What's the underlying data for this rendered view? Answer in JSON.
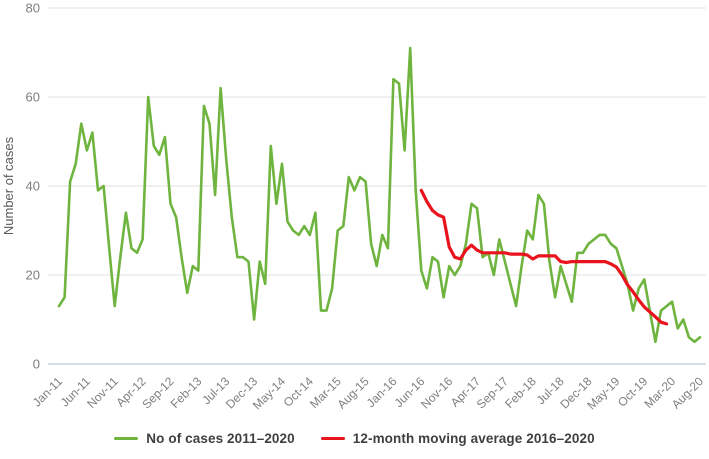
{
  "chart_data": {
    "type": "line",
    "title": "",
    "xlabel": "",
    "ylabel": "Number of cases",
    "ylim": [
      0,
      80
    ],
    "yticks": [
      0,
      20,
      40,
      60,
      80
    ],
    "grid": "horizontal",
    "legend_position": "bottom",
    "n_points": 116,
    "x_tick_labels": [
      "Jan-11",
      "Jun-11",
      "Nov-11",
      "Apr-12",
      "Sep-12",
      "Feb-13",
      "Jul-13",
      "Dec-13",
      "May-14",
      "Oct-14",
      "Mar-15",
      "Aug-15",
      "Jan-16",
      "Jun-16",
      "Nov-16",
      "Apr-17",
      "Sep-17",
      "Feb-18",
      "Jul-18",
      "Dec-18",
      "May-19",
      "Oct-19",
      "Mar-20",
      "Aug-20"
    ],
    "x_tick_every_months": 5,
    "x_range_months": "Jan-2011 to Aug-2020",
    "series": [
      {
        "name": "No of cases 2011–2020",
        "color": "#6FB43F",
        "stroke_width": 2.6,
        "start_index": 0,
        "values": [
          13,
          15,
          41,
          45,
          54,
          48,
          52,
          39,
          40,
          26,
          13,
          24,
          34,
          26,
          25,
          28,
          60,
          49,
          47,
          51,
          36,
          33,
          24,
          16,
          22,
          21,
          58,
          54,
          38,
          62,
          46,
          33,
          24,
          24,
          23,
          10,
          23,
          18,
          49,
          36,
          45,
          32,
          30,
          29,
          31,
          29,
          34,
          12,
          12,
          17,
          30,
          31,
          42,
          39,
          42,
          41,
          27,
          22,
          29,
          26,
          64,
          63,
          48,
          71,
          39,
          21,
          17,
          24,
          23,
          15,
          22,
          20,
          22,
          27,
          36,
          35,
          24,
          25,
          20,
          28,
          23,
          18,
          13,
          22,
          30,
          28,
          38,
          36,
          23,
          15,
          22,
          18,
          14,
          25,
          25,
          27,
          28,
          29,
          29,
          27,
          26,
          22,
          18,
          12,
          17,
          19,
          12,
          5,
          12,
          13,
          14,
          8,
          10,
          6,
          5,
          6
        ]
      },
      {
        "name": "12-month moving average 2016–2020",
        "color": "#E8131D",
        "stroke_width": 3.2,
        "start_index": 65,
        "values": [
          39,
          36.5,
          34.5,
          33.5,
          33,
          26.3,
          24,
          23.6,
          25.6,
          26.7,
          25.6,
          25,
          25,
          25,
          25,
          25,
          24.7,
          24.7,
          24.7,
          24.5,
          23.6,
          24.3,
          24.3,
          24.3,
          24.3,
          23,
          22.8,
          23,
          23,
          23,
          23,
          23,
          23,
          23,
          22.5,
          21.8,
          20,
          17.8,
          16.2,
          14.4,
          12.8,
          11.7,
          10.6,
          9.4,
          9
        ]
      }
    ]
  },
  "legend": {
    "items": [
      {
        "label": "No of cases 2011–2020"
      },
      {
        "label": "12-month moving average 2016–2020"
      }
    ]
  },
  "colors": {
    "grid_line": "#e2e2e2",
    "zero_axis_line": "#c7d6e5",
    "tick_text": "#7f7f7f",
    "axis_title_text": "#595959",
    "legend_text": "#3f3f3f",
    "background": "#ffffff"
  }
}
